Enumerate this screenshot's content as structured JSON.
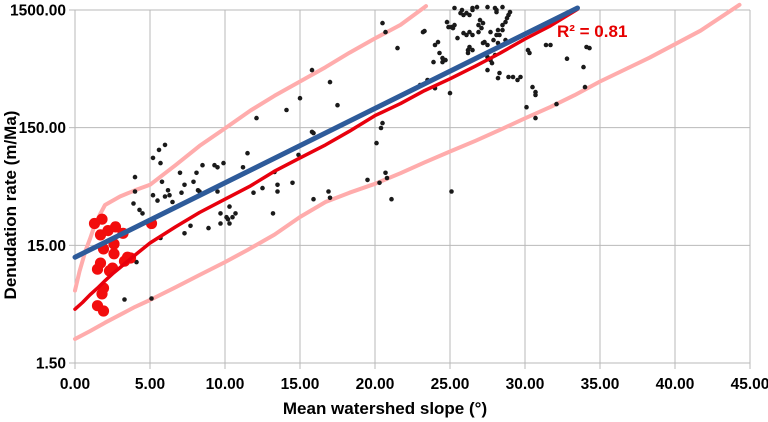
{
  "chart_data": {
    "type": "scatter",
    "title": "",
    "xlabel": "Mean watershed slope (°)",
    "ylabel": "Denudation rate (m/Ma)",
    "xlim": [
      0,
      45
    ],
    "ylim": [
      1.5,
      1500
    ],
    "y_scale": "log",
    "grid": true,
    "legend": "none",
    "annotation": {
      "text": "R² = 0.81",
      "x": 32.3,
      "y": 950,
      "color": "#e60000"
    },
    "x_ticks": [
      {
        "value": 0,
        "label": "0.00"
      },
      {
        "value": 5,
        "label": "5.00"
      },
      {
        "value": 10,
        "label": "10.00"
      },
      {
        "value": 15,
        "label": "15.00"
      },
      {
        "value": 20,
        "label": "20.00"
      },
      {
        "value": 25,
        "label": "25.00"
      },
      {
        "value": 30,
        "label": "30.00"
      },
      {
        "value": 35,
        "label": "35.00"
      },
      {
        "value": 40,
        "label": "40.00"
      },
      {
        "value": 45,
        "label": "45.00"
      }
    ],
    "y_ticks": [
      {
        "value": 1.5,
        "label": "1.50"
      },
      {
        "value": 15,
        "label": "15.00"
      },
      {
        "value": 150,
        "label": "150.00"
      },
      {
        "value": 1500,
        "label": "1500.00"
      }
    ],
    "colors": {
      "grid": "#b9b9b9",
      "black_points": "#1a1a1a",
      "red_points": "#f20d0d",
      "red_fit": "#e8000d",
      "blue_fit": "#2e5b9a",
      "band": "#ffacac",
      "annotation": "#e60000",
      "background": "#ffffff"
    },
    "series": [
      {
        "name": "watershed-samples-black",
        "marker": "dot",
        "radius": 2.3,
        "color": "#1a1a1a",
        "points": [
          [
            3.3,
            5.2
          ],
          [
            5.1,
            5.3
          ],
          [
            4.1,
            10.8
          ],
          [
            5.7,
            17.3
          ],
          [
            7.3,
            19
          ],
          [
            7.7,
            22
          ],
          [
            4.9,
            23
          ],
          [
            4.5,
            28
          ],
          [
            4.3,
            30
          ],
          [
            3.9,
            34
          ],
          [
            4.0,
            43
          ],
          [
            4.0,
            57
          ],
          [
            5.2,
            40
          ],
          [
            5.5,
            36
          ],
          [
            5.2,
            83
          ],
          [
            5.6,
            97
          ],
          [
            5.7,
            75
          ],
          [
            5.8,
            52
          ],
          [
            6.0,
            107
          ],
          [
            6.0,
            39
          ],
          [
            6.2,
            44
          ],
          [
            6.3,
            40
          ],
          [
            6.5,
            35
          ],
          [
            7.0,
            62
          ],
          [
            7.1,
            42
          ],
          [
            7.3,
            49
          ],
          [
            7.9,
            52
          ],
          [
            8.1,
            62
          ],
          [
            8.2,
            44
          ],
          [
            8.3,
            43
          ],
          [
            8.5,
            72
          ],
          [
            8.9,
            21
          ],
          [
            9.3,
            72
          ],
          [
            9.5,
            69
          ],
          [
            9.5,
            43
          ],
          [
            9.7,
            28
          ],
          [
            9.7,
            23
          ],
          [
            9.9,
            75
          ],
          [
            10.1,
            26
          ],
          [
            10.2,
            25
          ],
          [
            10.3,
            23
          ],
          [
            10.3,
            32
          ],
          [
            10.5,
            26
          ],
          [
            10.7,
            28
          ],
          [
            11.2,
            69
          ],
          [
            11.5,
            91
          ],
          [
            11.9,
            42
          ],
          [
            12.1,
            181
          ],
          [
            12.5,
            46
          ],
          [
            13.2,
            28
          ],
          [
            13.3,
            63
          ],
          [
            13.5,
            49
          ],
          [
            13.5,
            43
          ],
          [
            14.1,
            212
          ],
          [
            14.5,
            51
          ],
          [
            14.9,
            88
          ],
          [
            15.0,
            267
          ],
          [
            15.8,
            463
          ],
          [
            15.8,
            138
          ],
          [
            15.9,
            135
          ],
          [
            15.9,
            37
          ],
          [
            16.9,
            43
          ],
          [
            17.0,
            366
          ],
          [
            17.0,
            38
          ],
          [
            17.5,
            233
          ],
          [
            19.5,
            54
          ],
          [
            20.1,
            111
          ],
          [
            20.3,
            51
          ],
          [
            20.4,
            149
          ],
          [
            20.5,
            164
          ],
          [
            20.5,
            1161
          ],
          [
            20.7,
            973
          ],
          [
            20.7,
            62
          ],
          [
            20.8,
            56
          ],
          [
            21.1,
            37
          ],
          [
            21.5,
            712
          ],
          [
            23.0,
            345
          ],
          [
            23.2,
            973
          ],
          [
            23.3,
            993
          ],
          [
            23.5,
            381
          ],
          [
            23.9,
            541
          ],
          [
            24.0,
            756
          ],
          [
            24.0,
            325
          ],
          [
            24.2,
            801
          ],
          [
            24.3,
            646
          ],
          [
            24.5,
            585
          ],
          [
            24.5,
            541
          ],
          [
            24.7,
            563
          ],
          [
            24.8,
            1184
          ],
          [
            24.9,
            1074
          ],
          [
            25.0,
            295
          ],
          [
            25.1,
            1074
          ],
          [
            25.1,
            43
          ],
          [
            25.2,
            1053
          ],
          [
            25.3,
            1117
          ],
          [
            25.3,
            1559
          ],
          [
            25.5,
            866
          ],
          [
            25.7,
            1413
          ],
          [
            25.8,
            1500
          ],
          [
            25.9,
            1359
          ],
          [
            25.9,
            955
          ],
          [
            26.1,
            1413
          ],
          [
            26.1,
            919
          ],
          [
            26.2,
            684
          ],
          [
            26.2,
            646
          ],
          [
            26.3,
            973
          ],
          [
            26.3,
            1359
          ],
          [
            26.3,
            727
          ],
          [
            26.5,
            919
          ],
          [
            26.5,
            1500
          ],
          [
            26.5,
            1559
          ],
          [
            26.5,
            684
          ],
          [
            26.8,
            1589
          ],
          [
            26.9,
            1117
          ],
          [
            26.9,
            973
          ],
          [
            27.0,
            1231
          ],
          [
            27.1,
            1053
          ],
          [
            27.2,
            1161
          ],
          [
            27.2,
            786
          ],
          [
            27.3,
            801
          ],
          [
            27.5,
            756
          ],
          [
            27.5,
            463
          ],
          [
            27.5,
            1589
          ],
          [
            27.5,
            597
          ],
          [
            27.7,
            973
          ],
          [
            27.7,
            563
          ],
          [
            27.8,
            531
          ],
          [
            27.9,
            833
          ],
          [
            28.0,
            621
          ],
          [
            28.0,
            1559
          ],
          [
            28.1,
            1500
          ],
          [
            28.1,
            1440
          ],
          [
            28.1,
            919
          ],
          [
            28.2,
            1012
          ],
          [
            28.2,
            786
          ],
          [
            28.2,
            396
          ],
          [
            28.3,
            919
          ],
          [
            28.3,
            437
          ],
          [
            28.5,
            1589
          ],
          [
            28.5,
            1117
          ],
          [
            28.5,
            1012
          ],
          [
            28.7,
            1184
          ],
          [
            28.7,
            833
          ],
          [
            28.8,
            1280
          ],
          [
            28.9,
            1359
          ],
          [
            28.9,
            404
          ],
          [
            29.0,
            1440
          ],
          [
            29.2,
            404
          ],
          [
            29.5,
            381
          ],
          [
            29.7,
            404
          ],
          [
            30.1,
            224
          ],
          [
            30.2,
            684
          ],
          [
            30.3,
            646
          ],
          [
            30.5,
            332
          ],
          [
            30.7,
            301
          ],
          [
            30.7,
            284
          ],
          [
            30.7,
            181
          ],
          [
            31.4,
            756
          ],
          [
            31.7,
            756
          ],
          [
            32.1,
            238
          ],
          [
            32.8,
            578
          ],
          [
            34.0,
            332
          ],
          [
            33.9,
            491
          ],
          [
            34.1,
            727
          ],
          [
            34.3,
            712
          ]
        ]
      },
      {
        "name": "highlighted-samples-red",
        "marker": "dot",
        "radius": 5.6,
        "color": "#f20d0d",
        "points": [
          [
            1.3,
            23
          ],
          [
            1.8,
            25
          ],
          [
            1.7,
            18.4
          ],
          [
            2.2,
            20
          ],
          [
            2.7,
            21.5
          ],
          [
            3.2,
            19
          ],
          [
            2.6,
            15.4
          ],
          [
            1.9,
            14
          ],
          [
            2.6,
            12.7
          ],
          [
            3.3,
            11.0
          ],
          [
            1.7,
            10.6
          ],
          [
            1.5,
            9.4
          ],
          [
            2.3,
            9.1
          ],
          [
            2.5,
            9.6
          ],
          [
            1.9,
            6.5
          ],
          [
            1.8,
            5.8
          ],
          [
            1.5,
            4.6
          ],
          [
            1.9,
            4.15
          ],
          [
            3.5,
            11.9
          ],
          [
            3.7,
            11.7
          ],
          [
            5.1,
            23
          ]
        ]
      }
    ],
    "bands": [
      {
        "name": "upper-prediction-band",
        "color": "#ffacac",
        "width": 4,
        "points": [
          [
            0,
            6.2
          ],
          [
            0.3,
            9
          ],
          [
            0.7,
            13.5
          ],
          [
            1,
            17
          ],
          [
            1.3,
            22
          ],
          [
            1.7,
            28
          ],
          [
            2,
            33
          ],
          [
            3,
            39
          ],
          [
            4,
            44
          ],
          [
            5,
            49
          ],
          [
            6.7,
            72
          ],
          [
            8.3,
            105
          ],
          [
            10,
            148
          ],
          [
            11.7,
            210
          ],
          [
            13.3,
            280
          ],
          [
            15,
            370
          ],
          [
            16.7,
            490
          ],
          [
            18.3,
            650
          ],
          [
            20,
            860
          ],
          [
            21.7,
            1120
          ],
          [
            23.4,
            1620
          ]
        ]
      },
      {
        "name": "lower-prediction-band",
        "color": "#ffacac",
        "width": 4,
        "points": [
          [
            0,
            2.4
          ],
          [
            1,
            2.8
          ],
          [
            2,
            3.3
          ],
          [
            3,
            3.85
          ],
          [
            4,
            4.5
          ],
          [
            5,
            5.15
          ],
          [
            6.7,
            6.6
          ],
          [
            8.3,
            8.4
          ],
          [
            10,
            10.8
          ],
          [
            11.5,
            13.7
          ],
          [
            13.3,
            18.5
          ],
          [
            15,
            26.1
          ],
          [
            16.7,
            35
          ],
          [
            18.3,
            42
          ],
          [
            20,
            50
          ],
          [
            21.7,
            61.5
          ],
          [
            23.3,
            76
          ],
          [
            25,
            94
          ],
          [
            26.7,
            116
          ],
          [
            28.3,
            143
          ],
          [
            30,
            180
          ],
          [
            31.7,
            225
          ],
          [
            33.3,
            283
          ],
          [
            35,
            370
          ],
          [
            38.3,
            590
          ],
          [
            41.7,
            1000
          ],
          [
            44.3,
            1660
          ]
        ]
      }
    ],
    "fits": [
      {
        "name": "power-law-fit",
        "color": "#e8000d",
        "width": 3.5,
        "points": [
          [
            0,
            4.3
          ],
          [
            0.5,
            4.9
          ],
          [
            1,
            5.7
          ],
          [
            1.5,
            6.5
          ],
          [
            2,
            7.5
          ],
          [
            2.5,
            8.6
          ],
          [
            3,
            9.7
          ],
          [
            4,
            12.4
          ],
          [
            5,
            15.7
          ],
          [
            6.7,
            21.5
          ],
          [
            8.3,
            28.5
          ],
          [
            10,
            37
          ],
          [
            11.7,
            48
          ],
          [
            13.3,
            64
          ],
          [
            15,
            83
          ],
          [
            16.7,
            107
          ],
          [
            18.3,
            140
          ],
          [
            20,
            190
          ],
          [
            21.7,
            240
          ],
          [
            23.3,
            310
          ],
          [
            25,
            390
          ],
          [
            26.7,
            500
          ],
          [
            28.3,
            640
          ],
          [
            30,
            850
          ],
          [
            31.7,
            1100
          ],
          [
            33.5,
            1520
          ]
        ]
      },
      {
        "name": "log-linear-trend",
        "color": "#2e5b9a",
        "width": 5,
        "points": [
          [
            0,
            11.9
          ],
          [
            33.5,
            1560
          ]
        ]
      }
    ]
  }
}
